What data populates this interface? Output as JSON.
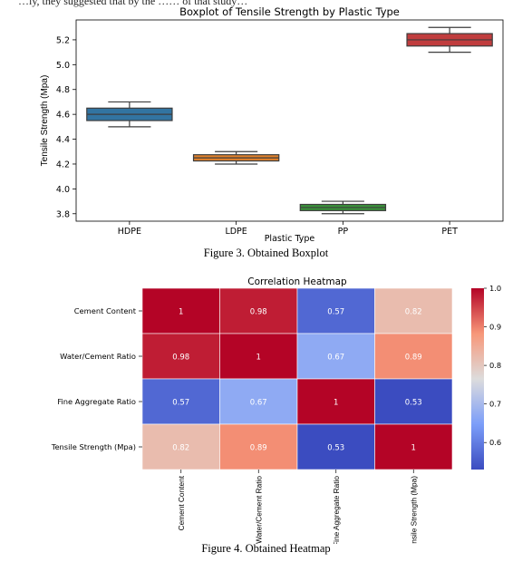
{
  "top_clipped_text": "…ly, they suggested that by the …… of that study…",
  "figures": [
    {
      "caption": "Figure 3. Obtained Boxplot"
    },
    {
      "caption": "Figure 4. Obtained Heatmap"
    }
  ],
  "chart_data": [
    {
      "type": "box",
      "title": "Boxplot of Tensile Strength by Plastic Type",
      "xlabel": "Plastic Type",
      "ylabel": "Tensile Strength (Mpa)",
      "ylim": [
        3.74,
        5.36
      ],
      "yticks": [
        3.8,
        4.0,
        4.2,
        4.4,
        4.6,
        4.8,
        5.0,
        5.2
      ],
      "grid": false,
      "categories": [
        "HDPE",
        "LDPE",
        "PP",
        "PET"
      ],
      "colors": [
        "#3274a1",
        "#e1812c",
        "#3a923a",
        "#c03d3e"
      ],
      "boxes": [
        {
          "category": "HDPE",
          "min": 4.5,
          "q1": 4.55,
          "median": 4.6,
          "q3": 4.65,
          "max": 4.7
        },
        {
          "category": "LDPE",
          "min": 4.2,
          "q1": 4.225,
          "median": 4.25,
          "q3": 4.275,
          "max": 4.3
        },
        {
          "category": "PP",
          "min": 3.8,
          "q1": 3.825,
          "median": 3.85,
          "q3": 3.875,
          "max": 3.9
        },
        {
          "category": "PET",
          "min": 5.1,
          "q1": 5.15,
          "median": 5.2,
          "q3": 5.25,
          "max": 5.3
        }
      ]
    },
    {
      "type": "heatmap",
      "title": "Correlation Heatmap",
      "rows": [
        "Cement Content",
        "Water/Cement Ratio",
        "Fine Aggregate Ratio",
        "Tensile Strength (Mpa)"
      ],
      "cols": [
        "Cement Content",
        "Water/Cement Ratio",
        "Fine Aggregate Ratio",
        "Tensile Strength (Mpa)"
      ],
      "values": [
        [
          1,
          0.98,
          0.57,
          0.82
        ],
        [
          0.98,
          1,
          0.67,
          0.89
        ],
        [
          0.57,
          0.67,
          1,
          0.53
        ],
        [
          0.82,
          0.89,
          0.53,
          1
        ]
      ],
      "annotations": [
        [
          "1",
          "0.98",
          "0.57",
          "0.82"
        ],
        [
          "0.98",
          "1",
          "0.67",
          "0.89"
        ],
        [
          "0.57",
          "0.67",
          "1",
          "0.53"
        ],
        [
          "0.82",
          "0.89",
          "0.53",
          "1"
        ]
      ],
      "colormap": "coolwarm",
      "colorbar": {
        "range": [
          0.53,
          1.0
        ],
        "ticks": [
          0.6,
          0.7,
          0.8,
          0.9,
          1.0
        ],
        "tick_labels": [
          "0.6",
          "0.7",
          "0.8",
          "0.9",
          "1.0"
        ]
      }
    }
  ]
}
